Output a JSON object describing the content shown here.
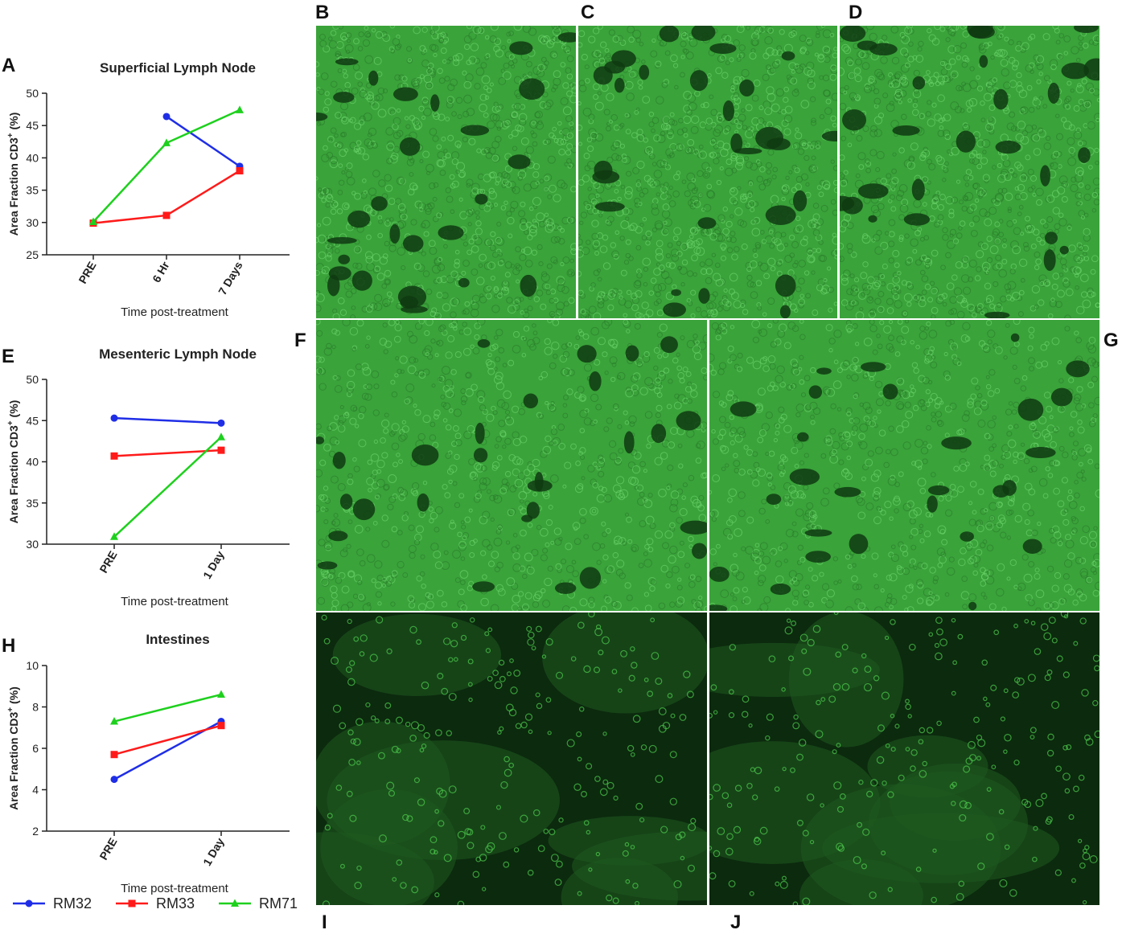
{
  "panel_letters": {
    "A": "A",
    "B": "B",
    "C": "C",
    "D": "D",
    "E": "E",
    "F": "F",
    "G": "G",
    "H": "H",
    "I": "I",
    "J": "J"
  },
  "colors": {
    "RM32": "#1f2ee6",
    "RM33": "#ff1a1a",
    "RM71": "#1ed01e",
    "lymph_node_stain": "#3aa33a",
    "intestine_stain": "#1f5a1f"
  },
  "legend": [
    {
      "name": "RM32",
      "marker": "circle"
    },
    {
      "name": "RM33",
      "marker": "square"
    },
    {
      "name": "RM71",
      "marker": "triangle"
    }
  ],
  "chart_data": [
    {
      "type": "line",
      "panel": "A",
      "title": "Superficial Lymph Node",
      "xlabel": "Time post-treatment",
      "ylabel_main": "Area Fraction CD3",
      "ylabel_sup": "+",
      "ylabel_tail": " (%)",
      "categories": [
        "PRE",
        "6 Hr",
        "7 Days"
      ],
      "ylim": [
        25,
        50
      ],
      "yticks": [
        25,
        30,
        35,
        40,
        45,
        50
      ],
      "series": [
        {
          "name": "RM32",
          "values": [
            null,
            46.4,
            38.7
          ]
        },
        {
          "name": "RM33",
          "values": [
            29.9,
            31.1,
            38.0
          ]
        },
        {
          "name": "RM71",
          "values": [
            30.1,
            42.3,
            47.4
          ]
        }
      ]
    },
    {
      "type": "line",
      "panel": "E",
      "title": "Mesenteric Lymph Node",
      "xlabel": "Time post-treatment",
      "ylabel_main": "Area Fraction CD3",
      "ylabel_sup": "+",
      "ylabel_tail": " (%)",
      "categories": [
        "PRE",
        "1 Day"
      ],
      "ylim": [
        30,
        50
      ],
      "yticks": [
        30,
        35,
        40,
        45,
        50
      ],
      "series": [
        {
          "name": "RM32",
          "values": [
            45.3,
            44.7
          ]
        },
        {
          "name": "RM33",
          "values": [
            40.7,
            41.4
          ]
        },
        {
          "name": "RM71",
          "values": [
            30.9,
            43.0
          ]
        }
      ]
    },
    {
      "type": "line",
      "panel": "H",
      "title": "Intestines",
      "xlabel": "Time post-treatment",
      "ylabel_main": "Area Fraction CD3",
      "ylabel_sup": "+",
      "ylabel_tail": " (%)",
      "categories": [
        "PRE",
        "1 Day"
      ],
      "ylim": [
        2,
        10
      ],
      "yticks": [
        2,
        4,
        6,
        8,
        10
      ],
      "series": [
        {
          "name": "RM32",
          "values": [
            4.5,
            7.3
          ]
        },
        {
          "name": "RM33",
          "values": [
            5.7,
            7.1
          ]
        },
        {
          "name": "RM71",
          "values": [
            7.3,
            8.6
          ]
        }
      ]
    }
  ]
}
